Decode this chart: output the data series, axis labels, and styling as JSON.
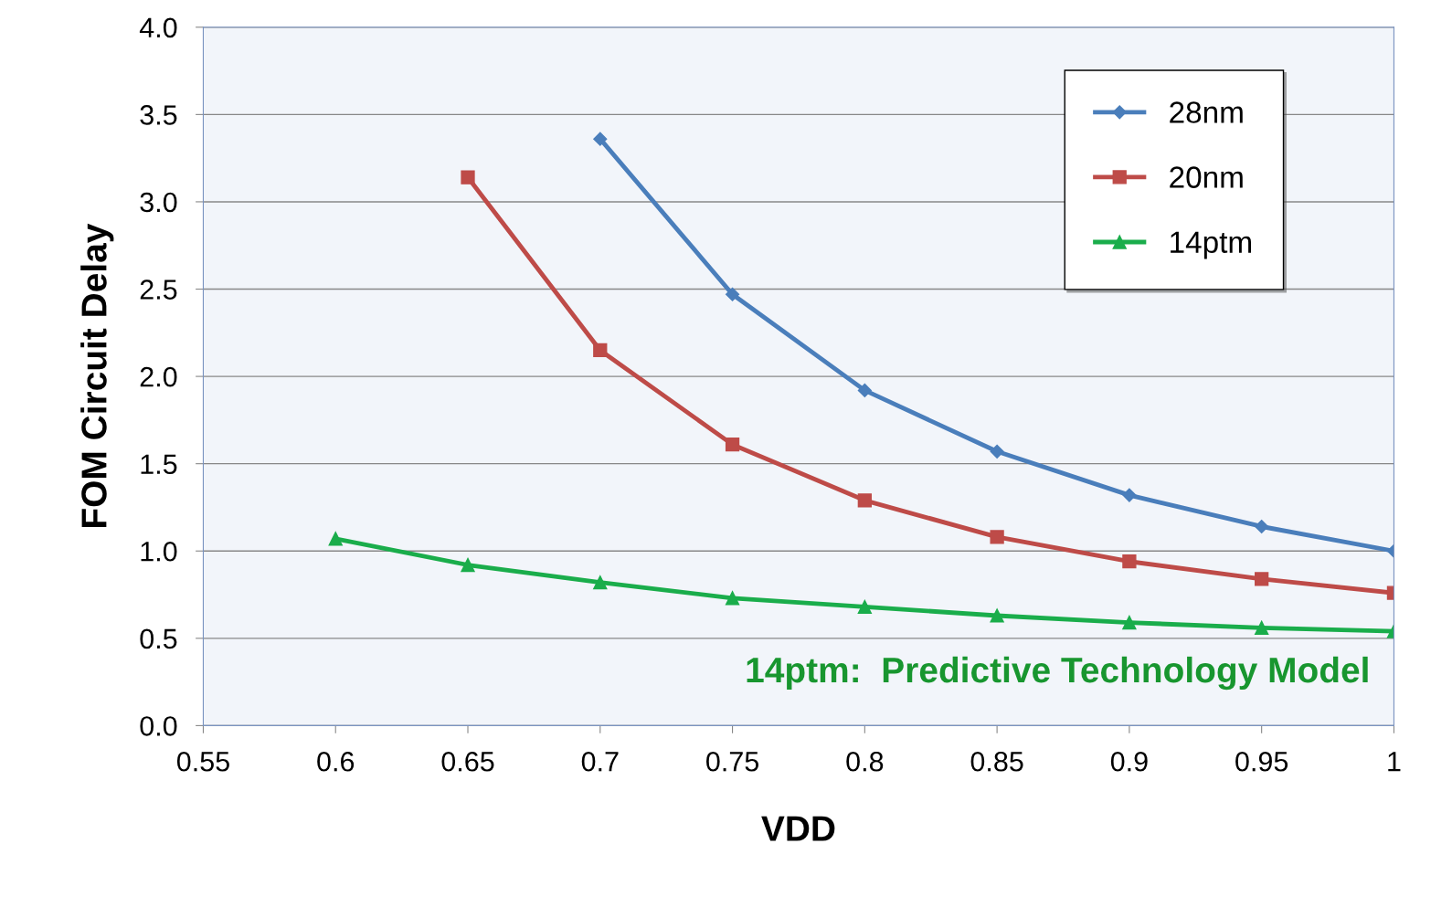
{
  "chart_data": {
    "type": "line",
    "xlabel": "VDD",
    "ylabel": "FOM Circuit Delay",
    "x": [
      0.6,
      0.65,
      0.7,
      0.75,
      0.8,
      0.85,
      0.9,
      0.95,
      1
    ],
    "series": [
      {
        "name": "28nm",
        "color": "#4a7ebb",
        "marker": "diamond",
        "values": [
          null,
          null,
          3.36,
          2.47,
          1.92,
          1.57,
          1.32,
          1.14,
          1.0
        ]
      },
      {
        "name": "20nm",
        "color": "#be4b48",
        "marker": "square",
        "values": [
          null,
          3.14,
          2.15,
          1.61,
          1.29,
          1.08,
          0.94,
          0.84,
          0.76
        ]
      },
      {
        "name": "14ptm",
        "color": "#1aad4b",
        "marker": "triangle",
        "values": [
          1.07,
          0.92,
          0.82,
          0.73,
          0.68,
          0.63,
          0.59,
          0.56,
          0.54
        ]
      }
    ],
    "xlim": [
      0.55,
      1
    ],
    "xticks": [
      0.55,
      0.6,
      0.65,
      0.7,
      0.75,
      0.8,
      0.85,
      0.9,
      0.95,
      1
    ],
    "ylim": [
      0,
      4
    ],
    "yticks": [
      {
        "value": 0,
        "label": "0.0"
      },
      0.5,
      {
        "value": 1,
        "label": "1.0"
      },
      1.5,
      {
        "value": 2,
        "label": "2.0"
      },
      2.5,
      {
        "value": 3,
        "label": "3.0"
      },
      3.5,
      {
        "value": 4,
        "label": "4.0"
      }
    ],
    "annotations": [
      "14ptm:  Predictive Technology Model"
    ],
    "grid": "y",
    "legend": "top right",
    "line_style": "solid"
  }
}
